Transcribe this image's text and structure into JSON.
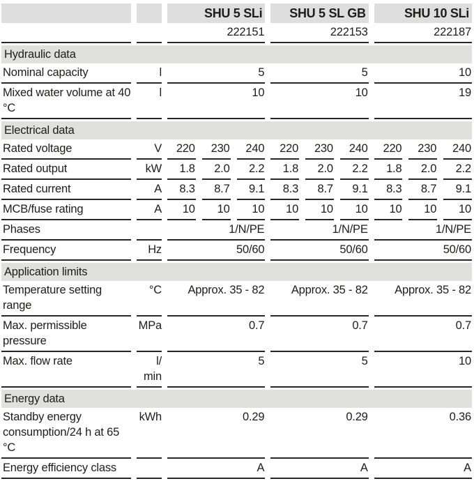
{
  "colors": {
    "band_gray": "#e0e0de",
    "header_gray": "#dedede",
    "rule": "#262626",
    "text": "#1d1d1b"
  },
  "header": {
    "products": [
      {
        "name": "SHU 5 SLi",
        "article": "222151"
      },
      {
        "name": "SHU 5 SL GB",
        "article": "222153"
      },
      {
        "name": "SHU 10 SLi",
        "article": "222187"
      }
    ]
  },
  "sections": [
    {
      "title": "Hydraulic data",
      "rows": [
        {
          "label": "Nominal capacity",
          "unit": "l",
          "values": [
            "5",
            "5",
            "10"
          ]
        },
        {
          "label": "Mixed water volume at 40 °C",
          "unit": "l",
          "values": [
            "10",
            "10",
            "19"
          ]
        }
      ]
    },
    {
      "title": "Electrical data",
      "rows": [
        {
          "label": "Rated voltage",
          "unit": "V",
          "values": [
            [
              "220",
              "230",
              "240"
            ],
            [
              "220",
              "230",
              "240"
            ],
            [
              "220",
              "230",
              "240"
            ]
          ]
        },
        {
          "label": "Rated output",
          "unit": "kW",
          "values": [
            [
              "1.8",
              "2.0",
              "2.2"
            ],
            [
              "1.8",
              "2.0",
              "2.2"
            ],
            [
              "1.8",
              "2.0",
              "2.2"
            ]
          ]
        },
        {
          "label": "Rated current",
          "unit": "A",
          "values": [
            [
              "8.3",
              "8.7",
              "9.1"
            ],
            [
              "8.3",
              "8.7",
              "9.1"
            ],
            [
              "8.3",
              "8.7",
              "9.1"
            ]
          ]
        },
        {
          "label": "MCB/fuse rating",
          "unit": "A",
          "values": [
            [
              "10",
              "10",
              "10"
            ],
            [
              "10",
              "10",
              "10"
            ],
            [
              "10",
              "10",
              "10"
            ]
          ]
        },
        {
          "label": "Phases",
          "unit": "",
          "values": [
            "1/N/PE",
            "1/N/PE",
            "1/N/PE"
          ]
        },
        {
          "label": "Frequency",
          "unit": "Hz",
          "values": [
            "50/60",
            "50/60",
            "50/60"
          ]
        }
      ]
    },
    {
      "title": "Application limits",
      "rows": [
        {
          "label": "Temperature setting range",
          "unit": "°C",
          "values": [
            "Approx. 35 - 82",
            "Approx. 35 - 82",
            "Approx. 35 - 82"
          ]
        },
        {
          "label": "Max. permissible pressure",
          "unit": "MPa",
          "values": [
            "0.7",
            "0.7",
            "0.7"
          ]
        },
        {
          "label": "Max. flow rate",
          "unit": "l/min",
          "values": [
            "5",
            "5",
            "10"
          ]
        }
      ]
    },
    {
      "title": "Energy data",
      "rows": [
        {
          "label": "Standby energy consumption/24 h at 65 °C",
          "unit": "kWh",
          "values": [
            "0.29",
            "0.29",
            "0.36"
          ]
        },
        {
          "label": "Energy efficiency class",
          "unit": "",
          "values": [
            "A",
            "A",
            "A"
          ]
        }
      ]
    }
  ]
}
